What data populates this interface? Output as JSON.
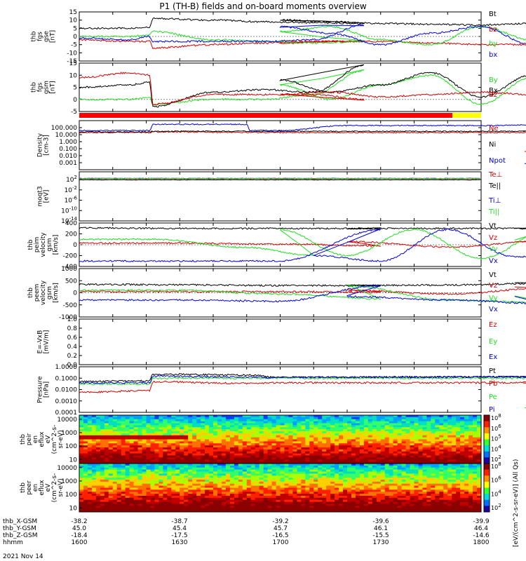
{
  "title": "P1 (TH-B) fields and on-board moments overview",
  "colors": {
    "black": "#000000",
    "red": "#d40000",
    "green": "#22dd22",
    "blue": "#0000e0",
    "magenta": "#cc00cc",
    "fgm_bar_main": "#ff0000",
    "fgm_bar_tail": "#ffff00"
  },
  "chart_data": [
    {
      "type": "line",
      "panel_id": "fgs",
      "ylabel": [
        "thb",
        "fgs",
        "gse",
        "[nT]"
      ],
      "ylim": [
        -15,
        15
      ],
      "y_ticks": [
        "-15",
        "-10",
        "-5",
        "0",
        "5",
        "10",
        "15"
      ],
      "legend": [
        "Bt",
        "bz",
        "by",
        "bx"
      ],
      "legend_colors": [
        "#000000",
        "#d40000",
        "#22dd22",
        "#0000e0"
      ],
      "series": [
        {
          "name": "Bt",
          "x": [
            1600,
            1615,
            1621,
            1622,
            1640,
            1655,
            1670,
            1685,
            1700,
            1715,
            1730,
            1745,
            1760,
            1775,
            1790,
            1800
          ],
          "values": [
            5,
            5,
            5.5,
            11,
            10,
            9,
            8.5,
            8,
            10,
            9,
            8,
            7.5,
            7,
            8,
            8.5,
            9
          ]
        },
        {
          "name": "bz",
          "x": [
            1600,
            1615,
            1621,
            1622,
            1640,
            1655,
            1670,
            1685,
            1700,
            1715,
            1730,
            1745,
            1760,
            1775,
            1790,
            1800
          ],
          "values": [
            -2,
            -3,
            -3,
            -7,
            -5,
            -4,
            -3,
            -3,
            -4,
            -3,
            -3,
            -4,
            -5,
            -5,
            -6,
            -6
          ]
        },
        {
          "name": "by",
          "x": [
            1600,
            1615,
            1621,
            1622,
            1640,
            1655,
            1670,
            1685,
            1700,
            1715,
            1730,
            1745,
            1760,
            1775,
            1790,
            1800
          ],
          "values": [
            0,
            0,
            1,
            3,
            -2,
            -3,
            -4,
            -3,
            3,
            6,
            -2,
            -5,
            6,
            -2,
            -4,
            7
          ]
        },
        {
          "name": "bx",
          "x": [
            1600,
            1615,
            1621,
            1622,
            1640,
            1655,
            1670,
            1685,
            1700,
            1715,
            1730,
            1745,
            1760,
            1775,
            1790,
            1800
          ],
          "values": [
            -1,
            -2,
            0,
            -3,
            -3,
            -3,
            -2,
            7,
            6,
            2,
            -5,
            2,
            6,
            -5,
            3,
            0
          ]
        }
      ]
    },
    {
      "type": "line",
      "panel_id": "fgs_gsm",
      "ylabel": [
        "thb",
        "fgs",
        "gsm",
        "[nT]"
      ],
      "ylim": [
        -5,
        15
      ],
      "y_ticks": [
        "-5",
        "0",
        "5",
        "10",
        "15"
      ],
      "legend": [
        "By",
        "Bx",
        "Bz"
      ],
      "legend_colors": [
        "#22dd22",
        "#000000",
        "#d40000"
      ],
      "series": [
        {
          "name": "By",
          "x": [
            1600,
            1615,
            1621,
            1622,
            1640,
            1655,
            1670,
            1685,
            1700,
            1715,
            1730,
            1745,
            1760,
            1775,
            1790,
            1800
          ],
          "values": [
            0,
            0,
            1,
            -2,
            0,
            0,
            2,
            12,
            6,
            0,
            6,
            10,
            -2,
            9,
            5,
            6
          ]
        },
        {
          "name": "Bx",
          "x": [
            1600,
            1615,
            1621,
            1622,
            1640,
            1655,
            1670,
            1685,
            1700,
            1715,
            1730,
            1745,
            1760,
            1775,
            1790,
            1800
          ],
          "values": [
            5,
            6,
            7,
            -3,
            3,
            4,
            3,
            14,
            8,
            3,
            6,
            11,
            1,
            10,
            4,
            3
          ]
        },
        {
          "name": "Bz",
          "x": [
            1600,
            1615,
            1621,
            1622,
            1640,
            1655,
            1670,
            1685,
            1700,
            1715,
            1730,
            1745,
            1760,
            1775,
            1790,
            1800
          ],
          "values": [
            9,
            11,
            10,
            -2,
            2,
            2,
            2,
            0,
            2,
            3,
            1,
            2,
            3,
            2,
            3,
            2
          ]
        }
      ]
    },
    {
      "type": "line",
      "panel_id": "density",
      "ylabel": [
        "Density",
        "[cm-3]"
      ],
      "yscale": "log",
      "ylim": [
        0.0001,
        1000
      ],
      "y_ticks": [
        "0.001",
        "0.010",
        "0.100",
        "1.000",
        "10.000",
        "100.000"
      ],
      "legend": [
        "Ne",
        "Ni",
        "Npot"
      ],
      "legend_colors": [
        "#d40000",
        "#000000",
        "#0000e0"
      ],
      "series": [
        {
          "name": "Ne",
          "x": [
            1600,
            1621,
            1622,
            1660,
            1700,
            1730,
            1760,
            1780,
            1785,
            1786,
            1800
          ],
          "values": [
            20,
            20,
            25,
            20,
            20,
            20,
            20,
            20,
            20,
            0.03,
            0.04
          ]
        },
        {
          "name": "Ni",
          "x": [
            1600,
            1621,
            1622,
            1660,
            1700,
            1730,
            1760,
            1780,
            1785,
            1800
          ],
          "values": [
            25,
            25,
            30,
            30,
            30,
            30,
            30,
            30,
            30,
            30
          ]
        },
        {
          "name": "Npot",
          "x": [
            1600,
            1621,
            1622,
            1640,
            1650,
            1651,
            1700,
            1720,
            1740,
            1760,
            1785,
            1786,
            1800
          ],
          "values": [
            40,
            40,
            300,
            300,
            300,
            40,
            40,
            200,
            200,
            200,
            300,
            0.0008,
            0.0008
          ]
        }
      ]
    },
    {
      "type": "line",
      "panel_id": "moqt3",
      "ylabel": [
        "moqt3",
        "[eV]"
      ],
      "yscale": "log",
      "ylim": [
        1e-14,
        100000
      ],
      "y_ticks": [
        "10^-14",
        "10^-10",
        "10^-6",
        "10^-2",
        "10^2"
      ],
      "legend": [
        "Te⊥",
        "Te||",
        "Ti⊥",
        "Ti||"
      ],
      "legend_colors": [
        "#d40000",
        "#000000",
        "#0000e0",
        "#22dd22"
      ],
      "series": [
        {
          "name": "Te⊥",
          "x": [
            1600,
            1800
          ],
          "values": [
            100,
            100
          ]
        },
        {
          "name": "Te||",
          "x": [
            1600,
            1800
          ],
          "values": [
            80,
            80
          ]
        },
        {
          "name": "Ti⊥",
          "x": [
            1600,
            1800
          ],
          "values": [
            300,
            300
          ]
        },
        {
          "name": "Ti||",
          "x": [
            1600,
            1800
          ],
          "values": [
            250,
            250
          ]
        }
      ]
    },
    {
      "type": "line",
      "panel_id": "peim_velocity",
      "ylabel": [
        "thb",
        "peim",
        "velocity",
        "gsm",
        "[km/s]"
      ],
      "ylim": [
        -400,
        400
      ],
      "y_ticks": [
        "-400",
        "-200",
        "0",
        "200",
        "400"
      ],
      "legend": [
        "Vt",
        "Vz",
        "Vy",
        "Vx"
      ],
      "legend_colors": [
        "#000000",
        "#d40000",
        "#22dd22",
        "#0000e0"
      ],
      "series": [
        {
          "name": "Vt",
          "x": [
            1600,
            1630,
            1660,
            1690,
            1720,
            1750,
            1780,
            1800
          ],
          "values": [
            310,
            300,
            300,
            300,
            300,
            300,
            300,
            310
          ]
        },
        {
          "name": "Vz",
          "x": [
            1600,
            1630,
            1660,
            1690,
            1720,
            1750,
            1780,
            1800
          ],
          "values": [
            30,
            30,
            10,
            -20,
            60,
            -40,
            70,
            20
          ]
        },
        {
          "name": "Vy",
          "x": [
            1600,
            1621,
            1622,
            1650,
            1670,
            1700,
            1720,
            1740,
            1760,
            1780,
            1800
          ],
          "values": [
            100,
            100,
            100,
            -50,
            -200,
            280,
            -200,
            280,
            -250,
            260,
            -100
          ]
        },
        {
          "name": "Vx",
          "x": [
            1600,
            1621,
            1622,
            1660,
            1690,
            1710,
            1730,
            1750,
            1770,
            1790,
            1800
          ],
          "values": [
            -300,
            -300,
            -300,
            -300,
            280,
            -200,
            -300,
            280,
            -220,
            -280,
            200
          ]
        }
      ]
    },
    {
      "type": "line",
      "panel_id": "peem_velocity",
      "ylabel": [
        "thb",
        "peem",
        "velocity",
        "gsm",
        "[km/s]"
      ],
      "ylim": [
        -1000,
        1000
      ],
      "y_ticks": [
        "-1000",
        "-500",
        "0",
        "500",
        "1000"
      ],
      "legend": [
        "Vt",
        "Vz",
        "Vy",
        "Vx"
      ],
      "legend_colors": [
        "#000000",
        "#d40000",
        "#22dd22",
        "#0000e0"
      ],
      "series": [
        {
          "name": "Vt",
          "x": [
            1600,
            1630,
            1660,
            1690,
            1720,
            1750,
            1780,
            1800
          ],
          "values": [
            350,
            330,
            300,
            300,
            300,
            320,
            400,
            500
          ]
        },
        {
          "name": "Vz",
          "x": [
            1600,
            1630,
            1660,
            1690,
            1720,
            1750,
            1780,
            1800
          ],
          "values": [
            50,
            50,
            50,
            20,
            100,
            -50,
            200,
            300
          ]
        },
        {
          "name": "Vy",
          "x": [
            1600,
            1630,
            1660,
            1690,
            1720,
            1750,
            1780,
            1800
          ],
          "values": [
            100,
            100,
            -50,
            -250,
            300,
            -300,
            -400,
            100
          ]
        },
        {
          "name": "Vx",
          "x": [
            1600,
            1630,
            1660,
            1690,
            1720,
            1750,
            1780,
            1800
          ],
          "values": [
            -300,
            -300,
            -350,
            300,
            -150,
            -300,
            -450,
            200
          ]
        }
      ]
    },
    {
      "type": "line",
      "panel_id": "exb",
      "ylabel": [
        "E=-VxB",
        "[mV/m]"
      ],
      "ylim": [
        0.0,
        1.0
      ],
      "y_ticks": [
        "0.0",
        "0.2",
        "0.4",
        "0.6",
        "0.8",
        "1.0"
      ],
      "legend": [
        "Ez",
        "Ey",
        "Ex"
      ],
      "legend_colors": [
        "#d40000",
        "#22dd22",
        "#0000e0"
      ],
      "series": []
    },
    {
      "type": "line",
      "panel_id": "pressure",
      "ylabel": [
        "Pressure",
        "[nPa]"
      ],
      "yscale": "log",
      "ylim": [
        0.0001,
        1.0
      ],
      "y_ticks": [
        "0.0001",
        "0.0010",
        "0.0100",
        "0.1000",
        "1.0000"
      ],
      "legend": [
        "Pt",
        "Pb",
        "Pe",
        "Pi"
      ],
      "legend_colors": [
        "#000000",
        "#d40000",
        "#22dd22",
        "#0000e0"
      ],
      "series": [
        {
          "name": "Pt",
          "x": [
            1600,
            1621,
            1622,
            1650,
            1700,
            1750,
            1785,
            1800
          ],
          "values": [
            0.05,
            0.06,
            0.22,
            0.19,
            0.12,
            0.13,
            0.13,
            0.15
          ]
        },
        {
          "name": "Pb",
          "x": [
            1600,
            1621,
            1622,
            1650,
            1700,
            1750,
            1785,
            1800
          ],
          "values": [
            0.006,
            0.008,
            0.05,
            0.035,
            0.04,
            0.04,
            0.04,
            0.05
          ]
        },
        {
          "name": "Pe",
          "x": [
            1600,
            1621,
            1622,
            1700,
            1785,
            1786,
            1800
          ],
          "values": [
            0.03,
            0.03,
            0.1,
            0.1,
            0.1,
            0.0003,
            0.0003
          ]
        },
        {
          "name": "Pi",
          "x": [
            1600,
            1621,
            1622,
            1700,
            1785,
            1800
          ],
          "values": [
            0.04,
            0.04,
            0.15,
            0.12,
            0.13,
            0.14
          ]
        }
      ]
    },
    {
      "type": "heatmap",
      "panel_id": "peir_flux",
      "ylabel": [
        "thb",
        "peir",
        "en",
        "eflux",
        "eV",
        "(cm^2-s-",
        "sr-eV)"
      ],
      "yscale": "log",
      "y_ticks": [
        "10",
        "100",
        "1000",
        "10000"
      ]
    },
    {
      "type": "heatmap",
      "panel_id": "peer_flux",
      "ylabel": [
        "thb",
        "peer",
        "en",
        "eflux",
        "eV",
        "(cm^2-s-",
        "sr-eV)"
      ],
      "yscale": "log",
      "y_ticks": [
        "10",
        "100",
        "1000",
        "10000"
      ]
    }
  ],
  "colorbar": {
    "label": "[eV/(cm^2-s-sr-eV)]",
    "label2": "[eV/(cm^2-s-sr-eV)] (All Qs)",
    "ticks_upper": [
      "10^2",
      "10^4",
      "10^5",
      "10^6",
      "10^8"
    ],
    "ticks_lower": [
      "10^2",
      "10^4",
      "10^6",
      "10^8"
    ]
  },
  "x_axis": {
    "rows": [
      {
        "label": "thb_X-GSM",
        "values": [
          "-38.2",
          "-38.7",
          "-39.2",
          "-39.6",
          "-39.9"
        ]
      },
      {
        "label": "thb_Y-GSM",
        "values": [
          "45.0",
          "45.4",
          "45.7",
          "46.1",
          "46.4"
        ]
      },
      {
        "label": "thb_Z-GSM",
        "values": [
          "-18.4",
          "-17.5",
          "-16.5",
          "-15.5",
          "-14.6"
        ]
      },
      {
        "label": "hhmm",
        "values": [
          "1600",
          "1630",
          "1700",
          "1730",
          "1800"
        ]
      }
    ],
    "date": "2021 Nov 14"
  }
}
